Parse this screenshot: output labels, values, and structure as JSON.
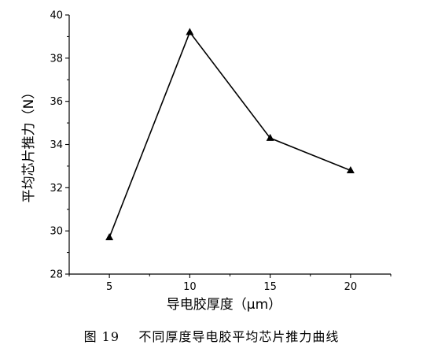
{
  "figure": {
    "caption": "图 19    不同厚度导电胶平均芯片推力曲线"
  },
  "chart_data": {
    "type": "line",
    "xlabel": "导电胶厚度（μm）",
    "ylabel": "平均芯片推力（N）",
    "x": [
      5,
      10,
      15,
      20
    ],
    "series": [
      {
        "values": [
          29.7,
          39.2,
          34.3,
          32.8
        ],
        "color": "#000000",
        "marker": "triangle"
      }
    ],
    "xlim": [
      2.5,
      22.5
    ],
    "ylim": [
      28,
      40
    ],
    "xticks": [
      5,
      10,
      15,
      20
    ],
    "yticks": [
      28,
      30,
      32,
      34,
      36,
      38,
      40
    ],
    "grid": false,
    "legend": "none"
  }
}
